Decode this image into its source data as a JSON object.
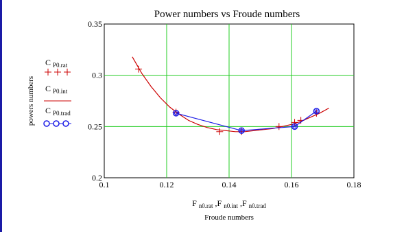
{
  "chart_data": {
    "type": "line",
    "title": "Power numbers vs Froude numbers",
    "xlabel": "Froude numbers",
    "ylabel": "powers numbers",
    "xlim": [
      0.1,
      0.18
    ],
    "ylim": [
      0.2,
      0.35
    ],
    "x_ticks": [
      "0.1",
      "0.12",
      "0.14",
      "0.16",
      "0.18"
    ],
    "y_ticks": [
      "0.2",
      "0.25",
      "0.3",
      "0.35"
    ],
    "x_tick_values": [
      0.1,
      0.12,
      0.14,
      0.16,
      0.18
    ],
    "y_tick_values": [
      0.2,
      0.25,
      0.3,
      0.35
    ],
    "grid": true,
    "x_axis_var": {
      "parts": [
        {
          "main": "F ",
          "sub": "n0.rat"
        },
        {
          "main": ",F ",
          "sub": "n0.int"
        },
        {
          "main": ",F ",
          "sub": "n0.trad"
        }
      ]
    },
    "series": [
      {
        "name_main": "C ",
        "name_sub": "P0.rat",
        "legend_glyph": "+ + +",
        "color": "#cc0000",
        "marker": "plus",
        "line": false,
        "x": [
          0.111,
          0.123,
          0.137,
          0.144,
          0.156,
          0.161,
          0.163,
          0.168
        ],
        "y": [
          0.306,
          0.264,
          0.245,
          0.245,
          0.25,
          0.254,
          0.256,
          0.263
        ]
      },
      {
        "name_main": "C ",
        "name_sub": "P0.int",
        "color": "#cc0000",
        "marker": "none",
        "line": true,
        "x": [
          0.109,
          0.112,
          0.115,
          0.118,
          0.121,
          0.124,
          0.127,
          0.13,
          0.133,
          0.136,
          0.139,
          0.142,
          0.145,
          0.148,
          0.151,
          0.154,
          0.157,
          0.16,
          0.163,
          0.166,
          0.169,
          0.172
        ],
        "y": [
          0.318,
          0.302,
          0.289,
          0.278,
          0.269,
          0.262,
          0.256,
          0.252,
          0.249,
          0.247,
          0.246,
          0.245,
          0.245,
          0.246,
          0.247,
          0.248,
          0.25,
          0.252,
          0.255,
          0.259,
          0.263,
          0.268
        ]
      },
      {
        "name_main": "C ",
        "name_sub": "P0.trad",
        "legend_glyph": "o-o-o",
        "color": "#1a1ae6",
        "marker": "circle",
        "line": true,
        "x": [
          0.123,
          0.144,
          0.161,
          0.168
        ],
        "y": [
          0.263,
          0.246,
          0.25,
          0.265
        ]
      }
    ]
  }
}
